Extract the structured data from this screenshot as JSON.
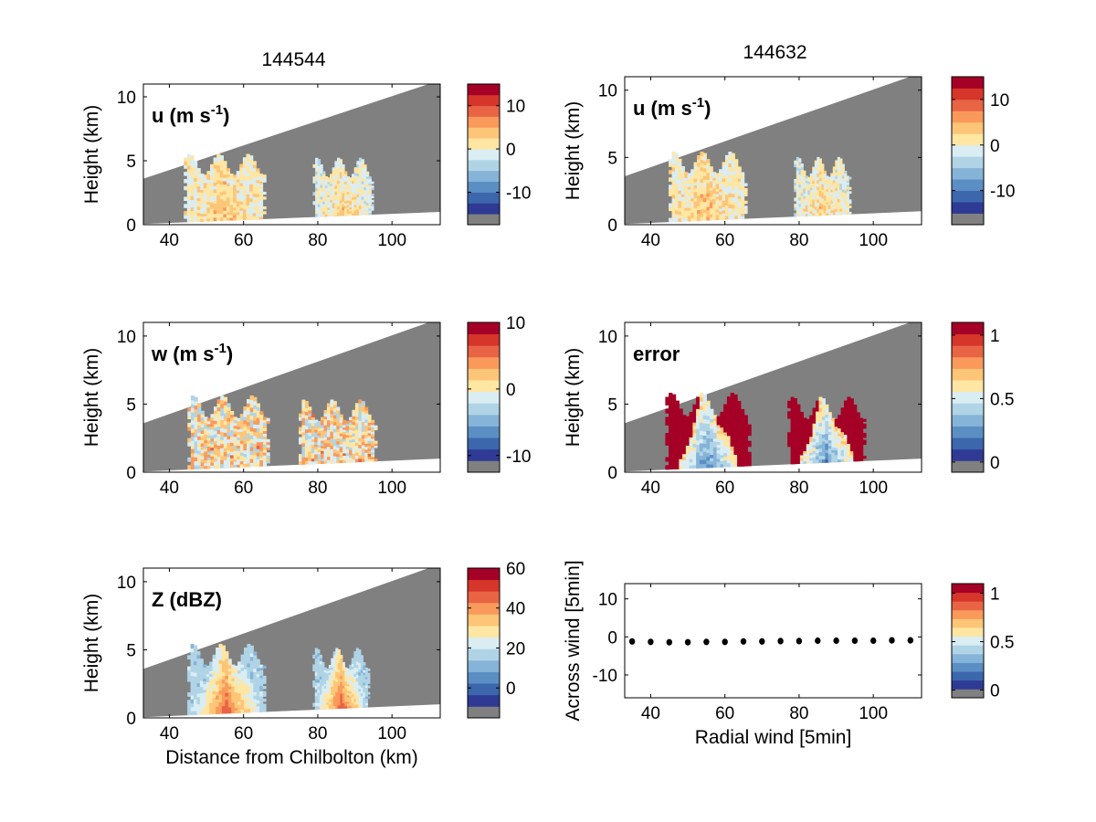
{
  "colors": {
    "scale": [
      "#808080",
      "#2e3a94",
      "#3d67ad",
      "#5b8fc4",
      "#86b4d8",
      "#b0d4e6",
      "#daedf3",
      "#ffe6a3",
      "#fdc577",
      "#f99a5b",
      "#e86444",
      "#d6352a",
      "#a50026"
    ],
    "missing": "#808080",
    "frame": "#000000"
  },
  "chart_data": [
    {
      "type": "heatmap",
      "title": "144544",
      "ylabel": "Height (km)",
      "xlabel": "",
      "field_label": "u (m s",
      "field_label_sup": "-1",
      "field_label_end": ")",
      "xlim": [
        33,
        113
      ],
      "ylim": [
        0,
        11
      ],
      "xticks": [
        "40",
        "60",
        "80",
        "100"
      ],
      "xtick_values": [
        40,
        60,
        80,
        100
      ],
      "yticks": [
        "0",
        "5",
        "10"
      ],
      "ytick_values": [
        0,
        5,
        10
      ],
      "colorbar": {
        "ticks": [
          "10",
          "0",
          "-10"
        ],
        "tick_values": [
          10,
          0,
          -10
        ],
        "range": [
          -17.5,
          15
        ]
      },
      "echoes": [
        {
          "x_range": [
            43,
            66
          ],
          "top_km": 5.5,
          "core": "positive",
          "value": 3
        },
        {
          "x_range": [
            78,
            95
          ],
          "top_km": 5.2,
          "core": "positive",
          "value": 2
        }
      ]
    },
    {
      "type": "heatmap",
      "title": "144632",
      "ylabel": "Height (km)",
      "xlabel": "",
      "field_label": "u (m s",
      "field_label_sup": "-1",
      "field_label_end": ")",
      "xlim": [
        33,
        113
      ],
      "ylim": [
        0,
        11
      ],
      "xticks": [
        "40",
        "60",
        "80",
        "100"
      ],
      "xtick_values": [
        40,
        60,
        80,
        100
      ],
      "yticks": [
        "0",
        "5",
        "10"
      ],
      "ytick_values": [
        0,
        5,
        10
      ],
      "colorbar": {
        "ticks": [
          "10",
          "0",
          "-10"
        ],
        "tick_values": [
          10,
          0,
          -10
        ],
        "range": [
          -17.5,
          15
        ]
      },
      "echoes": [
        {
          "x_range": [
            44,
            66
          ],
          "top_km": 5.4,
          "core": "positive",
          "value": 3
        },
        {
          "x_range": [
            78,
            94
          ],
          "top_km": 5.0,
          "core": "positive",
          "value": 2
        }
      ]
    },
    {
      "type": "heatmap",
      "title": "",
      "ylabel": "Height (km)",
      "xlabel": "",
      "field_label": "w (m s",
      "field_label_sup": "-1",
      "field_label_end": ")",
      "xlim": [
        33,
        113
      ],
      "ylim": [
        0,
        11
      ],
      "xticks": [
        "40",
        "60",
        "80",
        "100"
      ],
      "xtick_values": [
        40,
        60,
        80,
        100
      ],
      "yticks": [
        "0",
        "5",
        "10"
      ],
      "ytick_values": [
        0,
        5,
        10
      ],
      "colorbar": {
        "ticks": [
          "10",
          "0",
          "-10"
        ],
        "tick_values": [
          10,
          0,
          -10
        ],
        "range": [
          -12.5,
          10
        ]
      },
      "echoes": [
        {
          "x_range": [
            44,
            67
          ],
          "top_km": 5.6,
          "core": "mixed",
          "value": 0
        },
        {
          "x_range": [
            74,
            96
          ],
          "top_km": 5.3,
          "core": "mixed",
          "value": 0
        }
      ]
    },
    {
      "type": "heatmap",
      "title": "",
      "ylabel": "Height (km)",
      "xlabel": "",
      "field_label": "error",
      "field_label_sup": "",
      "field_label_end": "",
      "xlim": [
        33,
        113
      ],
      "ylim": [
        0,
        11
      ],
      "xticks": [
        "40",
        "60",
        "80",
        "100"
      ],
      "xtick_values": [
        40,
        60,
        80,
        100
      ],
      "yticks": [
        "0",
        "5",
        "10"
      ],
      "ytick_values": [
        0,
        5,
        10
      ],
      "colorbar": {
        "ticks": [
          "1",
          "0.5",
          "0"
        ],
        "tick_values": [
          1,
          0.5,
          0
        ],
        "range": [
          -0.08,
          1.1
        ]
      },
      "echoes": [
        {
          "x_range": [
            43,
            67
          ],
          "top_km": 5.8,
          "core": "low",
          "value": 0.15
        },
        {
          "x_range": [
            76,
            98
          ],
          "top_km": 5.5,
          "core": "low",
          "value": 0.15
        }
      ]
    },
    {
      "type": "heatmap",
      "title": "",
      "ylabel": "Height (km)",
      "xlabel": "Distance from Chilbolton (km)",
      "field_label": "Z (dBZ)",
      "field_label_sup": "",
      "field_label_end": "",
      "xlim": [
        33,
        113
      ],
      "ylim": [
        0,
        11
      ],
      "xticks": [
        "40",
        "60",
        "80",
        "100"
      ],
      "xtick_values": [
        40,
        60,
        80,
        100
      ],
      "yticks": [
        "0",
        "5",
        "10"
      ],
      "ytick_values": [
        0,
        5,
        10
      ],
      "colorbar": {
        "ticks": [
          "60",
          "40",
          "20",
          "0"
        ],
        "tick_values": [
          60,
          40,
          20,
          0
        ],
        "range": [
          -15,
          60
        ]
      },
      "echoes": [
        {
          "x_range": [
            44,
            66
          ],
          "top_km": 5.4,
          "core": "high",
          "value": 25
        },
        {
          "x_range": [
            78,
            94
          ],
          "top_km": 5.1,
          "core": "high",
          "value": 25
        }
      ]
    },
    {
      "type": "scatter",
      "title": "",
      "ylabel": "Across wind [5min]",
      "xlabel": "Radial wind [5min]",
      "xlim": [
        33,
        113
      ],
      "ylim": [
        -16,
        14
      ],
      "xticks": [
        "40",
        "60",
        "80",
        "100"
      ],
      "xtick_values": [
        40,
        60,
        80,
        100
      ],
      "yticks": [
        "10",
        "0",
        "-10"
      ],
      "ytick_values": [
        10,
        0,
        -10
      ],
      "colorbar": {
        "ticks": [
          "1",
          "0.5",
          "0"
        ],
        "tick_values": [
          1,
          0.5,
          0
        ],
        "range": [
          -0.08,
          1.1
        ]
      },
      "points": [
        {
          "x": 35,
          "y": -1.2
        },
        {
          "x": 40,
          "y": -1.3
        },
        {
          "x": 45,
          "y": -1.4
        },
        {
          "x": 50,
          "y": -1.4
        },
        {
          "x": 55,
          "y": -1.3
        },
        {
          "x": 60,
          "y": -1.3
        },
        {
          "x": 65,
          "y": -1.2
        },
        {
          "x": 70,
          "y": -1.2
        },
        {
          "x": 75,
          "y": -1.1
        },
        {
          "x": 80,
          "y": -1.1
        },
        {
          "x": 85,
          "y": -1.0
        },
        {
          "x": 90,
          "y": -1.0
        },
        {
          "x": 95,
          "y": -1.0
        },
        {
          "x": 100,
          "y": -1.0
        },
        {
          "x": 105,
          "y": -0.9
        },
        {
          "x": 110,
          "y": -0.9
        }
      ]
    }
  ]
}
